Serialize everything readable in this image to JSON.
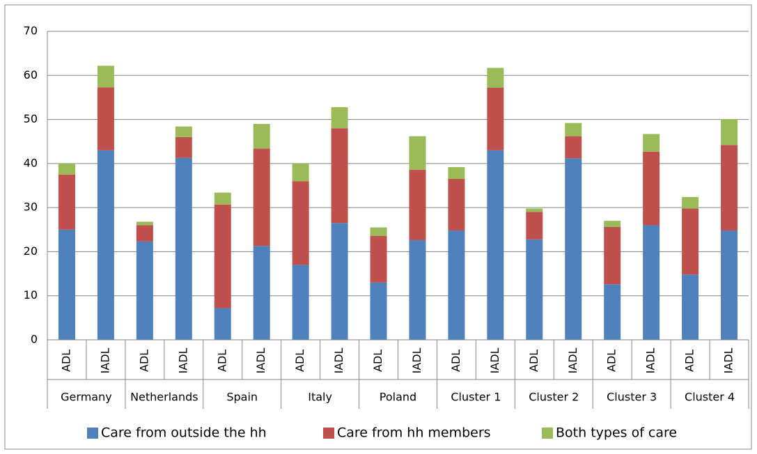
{
  "chart_data": {
    "type": "stacked_bar",
    "categories": [
      "ADL",
      "IADL",
      "ADL",
      "IADL",
      "ADL",
      "IADL",
      "ADL",
      "IADL",
      "ADL",
      "IADL",
      "ADL",
      "IADL",
      "ADL",
      "IADL",
      "ADL",
      "IADL",
      "ADL",
      "IADL"
    ],
    "groups": [
      "Germany",
      "Netherlands",
      "Spain",
      "Italy",
      "Poland",
      "Cluster 1",
      "Cluster 2",
      "Cluster 3",
      "Cluster 4"
    ],
    "series": [
      {
        "name": "Care from outside the hh",
        "color": "#4f81bd",
        "values": [
          25,
          43,
          22.3,
          41.3,
          7.2,
          21.3,
          17,
          26.5,
          13,
          22.6,
          24.8,
          43,
          22.8,
          41.2,
          12.6,
          26,
          14.8,
          24.8
        ]
      },
      {
        "name": "Care from hh members",
        "color": "#c0504d",
        "values": [
          12.5,
          14.3,
          3.7,
          4.7,
          23.5,
          22.1,
          19,
          21.5,
          10.6,
          16,
          11.7,
          14.2,
          6.2,
          5,
          13,
          16.7,
          15,
          19.4
        ]
      },
      {
        "name": "Both types of care",
        "color": "#9bbb59",
        "values": [
          2.5,
          4.9,
          0.8,
          2.4,
          2.7,
          5.6,
          4,
          4.8,
          1.9,
          7.6,
          2.7,
          4.5,
          0.8,
          3,
          1.4,
          4,
          2.6,
          5.9
        ]
      }
    ],
    "ylim": [
      0,
      70
    ],
    "yticks": [
      0,
      10,
      20,
      30,
      40,
      50,
      60,
      70
    ],
    "grid": true
  }
}
